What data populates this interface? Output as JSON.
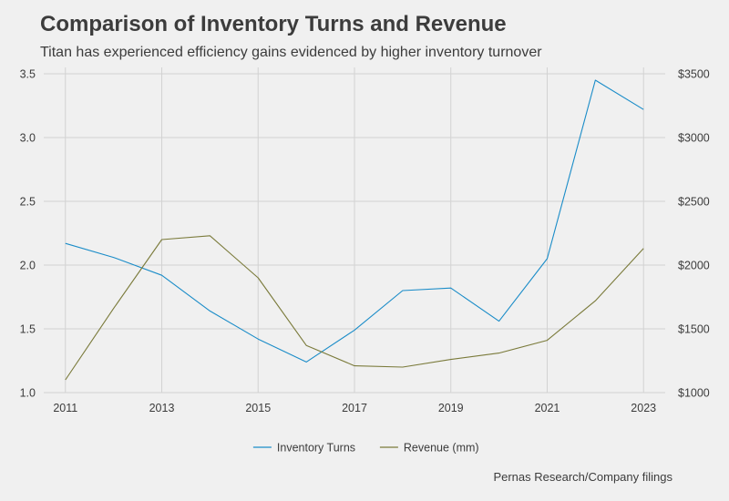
{
  "chart_data": {
    "type": "line",
    "title": "Comparison of Inventory Turns and Revenue",
    "subtitle": "Titan has experienced efficiency gains evidenced by higher inventory turnover",
    "caption": "Pernas Research/Company filings",
    "x": [
      2011,
      2012,
      2013,
      2014,
      2015,
      2016,
      2017,
      2018,
      2019,
      2020,
      2021,
      2022,
      2023
    ],
    "x_ticks": [
      "2011",
      "2013",
      "2015",
      "2017",
      "2019",
      "2021",
      "2023"
    ],
    "x_tick_values": [
      2011,
      2013,
      2015,
      2017,
      2019,
      2021,
      2023
    ],
    "xlim": [
      2010.55,
      2023.45
    ],
    "y_left": {
      "ylim": [
        1.0,
        3.55
      ],
      "ticks": [
        "1.0",
        "1.5",
        "2.0",
        "2.5",
        "3.0",
        "3.5"
      ],
      "tick_values": [
        1.0,
        1.5,
        2.0,
        2.5,
        3.0,
        3.5
      ]
    },
    "y_right": {
      "ylim": [
        1000,
        3550
      ],
      "ticks": [
        "$1000",
        "$1500",
        "$2000",
        "$2500",
        "$3000",
        "$3500"
      ],
      "tick_values": [
        1000,
        1500,
        2000,
        2500,
        3000,
        3500
      ]
    },
    "series": [
      {
        "name": "Inventory Turns",
        "axis": "left",
        "color": "#1a8cc8",
        "values": [
          2.17,
          2.06,
          1.92,
          1.64,
          1.42,
          1.24,
          1.49,
          1.8,
          1.82,
          1.56,
          2.05,
          3.45,
          3.22
        ]
      },
      {
        "name": "Revenue (mm)",
        "axis": "right",
        "color": "#7a7a3a",
        "values": [
          1100,
          1660,
          2200,
          2230,
          1900,
          1370,
          1210,
          1200,
          1260,
          1310,
          1410,
          1720,
          2130
        ]
      }
    ],
    "legend_position": "bottom",
    "grid": true
  }
}
